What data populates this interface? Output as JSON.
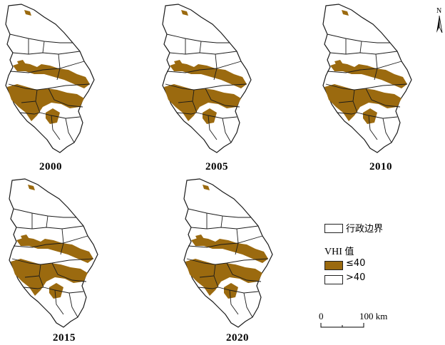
{
  "panels": [
    {
      "year": "2000"
    },
    {
      "year": "2005"
    },
    {
      "year": "2010"
    },
    {
      "year": "2015"
    },
    {
      "year": "2020"
    }
  ],
  "north_arrow": {
    "letter": "N"
  },
  "legend": {
    "boundary_label": "行政边界",
    "title_prefix": "VHI ",
    "title_suffix": "值",
    "classes": [
      {
        "label": "≤40",
        "color": "#9b6a0f"
      },
      {
        "label": ">40",
        "color": "#ffffff"
      }
    ]
  },
  "scalebar": {
    "start": "0",
    "end": "100 km"
  },
  "colors": {
    "drought": "#9b6a0f",
    "boundary": "#1a1a1a"
  }
}
